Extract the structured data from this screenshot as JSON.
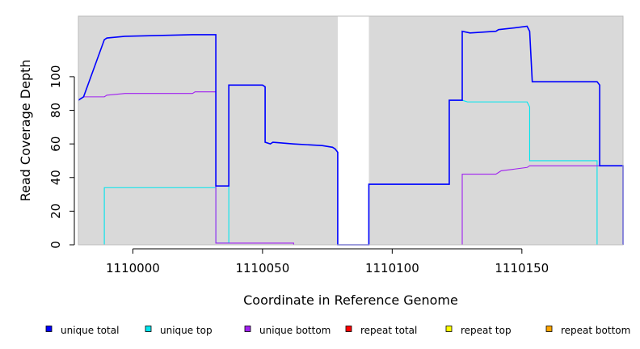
{
  "chart_data": {
    "type": "line",
    "title": "",
    "xlabel": "Coordinate in Reference Genome",
    "ylabel": "Read Coverage Depth",
    "xlim": [
      1109979,
      1110189
    ],
    "ylim": [
      0,
      136
    ],
    "x_ticks": [
      1110000,
      1110050,
      1110100,
      1110150
    ],
    "y_ticks": [
      0,
      20,
      40,
      60,
      80,
      100
    ],
    "grid": false,
    "background": "#d9d9d9",
    "gap": {
      "from": 1110079,
      "to": 1110091
    },
    "legend_position": "bottom",
    "series": [
      {
        "name": "unique total",
        "color": "#0000ff",
        "points": [
          [
            1109979,
            86
          ],
          [
            1109980,
            87
          ],
          [
            1109981,
            88
          ],
          [
            1109989,
            122
          ],
          [
            1109990,
            123
          ],
          [
            1109997,
            124
          ],
          [
            1110023,
            125
          ],
          [
            1110032,
            125
          ],
          [
            1110032,
            35
          ],
          [
            1110037,
            35
          ],
          [
            1110037,
            95
          ],
          [
            1110050,
            95
          ],
          [
            1110051,
            94
          ],
          [
            1110051,
            61
          ],
          [
            1110053,
            60
          ],
          [
            1110054,
            61
          ],
          [
            1110062,
            60
          ],
          [
            1110073,
            59
          ],
          [
            1110077,
            58
          ],
          [
            1110078,
            57
          ],
          [
            1110079,
            55
          ],
          [
            1110079,
            0
          ],
          [
            1110091,
            0
          ],
          [
            1110091,
            36
          ],
          [
            1110122,
            36
          ],
          [
            1110122,
            86
          ],
          [
            1110127,
            86
          ],
          [
            1110127,
            127
          ],
          [
            1110130,
            126
          ],
          [
            1110140,
            127
          ],
          [
            1110141,
            128
          ],
          [
            1110147,
            129
          ],
          [
            1110152,
            130
          ],
          [
            1110153,
            127
          ],
          [
            1110154,
            97
          ],
          [
            1110179,
            97
          ],
          [
            1110180,
            95
          ],
          [
            1110180,
            47
          ],
          [
            1110189,
            47
          ],
          [
            1110189,
            0
          ]
        ]
      },
      {
        "name": "unique top",
        "color": "#00e5ee",
        "points": [
          [
            1109979,
            0
          ],
          [
            1109989,
            0
          ],
          [
            1109989,
            34
          ],
          [
            1110032,
            34
          ],
          [
            1110032,
            1
          ],
          [
            1110037,
            1
          ],
          [
            1110037,
            95
          ],
          [
            1110050,
            95
          ],
          [
            1110051,
            94
          ],
          [
            1110051,
            61
          ],
          [
            1110053,
            60
          ],
          [
            1110054,
            61
          ],
          [
            1110062,
            60
          ],
          [
            1110073,
            59
          ],
          [
            1110077,
            58
          ],
          [
            1110078,
            57
          ],
          [
            1110079,
            55
          ],
          [
            1110079,
            0
          ],
          [
            1110091,
            0
          ],
          [
            1110091,
            36
          ],
          [
            1110122,
            36
          ],
          [
            1110122,
            86
          ],
          [
            1110127,
            86
          ],
          [
            1110129,
            85
          ],
          [
            1110152,
            85
          ],
          [
            1110153,
            82
          ],
          [
            1110153,
            50
          ],
          [
            1110179,
            50
          ],
          [
            1110179,
            0
          ],
          [
            1110189,
            0
          ]
        ]
      },
      {
        "name": "unique bottom",
        "color": "#a020f0",
        "points": [
          [
            1109979,
            86
          ],
          [
            1109980,
            87
          ],
          [
            1109981,
            88
          ],
          [
            1109989,
            88
          ],
          [
            1109990,
            89
          ],
          [
            1109997,
            90
          ],
          [
            1110023,
            90
          ],
          [
            1110024,
            91
          ],
          [
            1110032,
            91
          ],
          [
            1110032,
            1
          ],
          [
            1110062,
            1
          ],
          [
            1110062,
            0
          ],
          [
            1110127,
            0
          ],
          [
            1110127,
            42
          ],
          [
            1110140,
            42
          ],
          [
            1110141,
            43
          ],
          [
            1110142,
            44
          ],
          [
            1110147,
            45
          ],
          [
            1110152,
            46
          ],
          [
            1110153,
            47
          ],
          [
            1110189,
            47
          ],
          [
            1110189,
            0
          ]
        ]
      },
      {
        "name": "repeat total",
        "color": "#ff0000",
        "points": [
          [
            1109979,
            0
          ],
          [
            1110189,
            0
          ]
        ]
      },
      {
        "name": "repeat top",
        "color": "#ffff00",
        "points": [
          [
            1109979,
            0
          ],
          [
            1110189,
            0
          ]
        ]
      },
      {
        "name": "repeat bottom",
        "color": "#ffa500",
        "points": [
          [
            1109979,
            0
          ],
          [
            1110189,
            0
          ]
        ]
      }
    ]
  }
}
